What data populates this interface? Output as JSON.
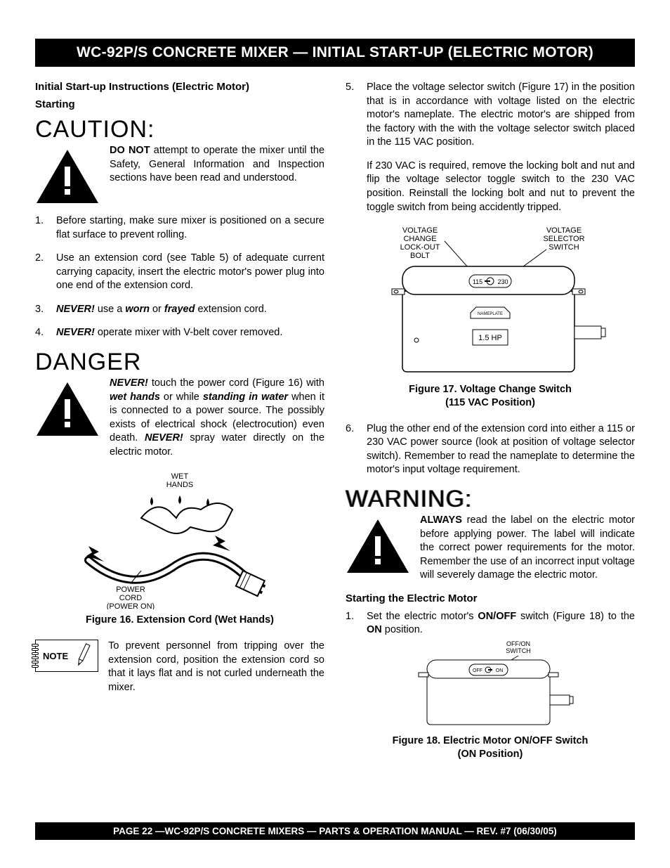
{
  "colors": {
    "bg": "#ffffff",
    "text": "#000000",
    "bar_bg": "#000000",
    "bar_text": "#ffffff"
  },
  "title_bar": "WC-92P/S CONCRETE MIXER — INITIAL START-UP (ELECTRIC MOTOR)",
  "footer_bar": "PAGE 22 —WC-92P/S CONCRETE MIXERS — PARTS & OPERATION MANUAL — REV. #7 (06/30/05)",
  "left": {
    "h1": "Initial Start-up Instructions (Electric Motor)",
    "h2": "Starting",
    "caution_label": "CAUTION:",
    "caution_text_prefix": "DO NOT",
    "caution_text": " attempt to operate the mixer until the Safety, General Information and Inspection sections have been read and understood.",
    "steps_a": [
      {
        "n": 1,
        "html": "Before starting,  make sure mixer is positioned on a secure flat surface to prevent rolling."
      },
      {
        "n": 2,
        "html": "Use an extension cord (see Table 5) of adequate current carrying capacity, insert  the electric motor's power plug  into one end of the extension cord."
      },
      {
        "n": 3,
        "html": "<span class='bi'>NEVER!</span> use a <span class='bi'>worn</span> or <span class='bi'>frayed</span> extension cord."
      },
      {
        "n": 4,
        "html": "<span class='bi'>NEVER!</span> operate mixer with V-belt cover removed."
      }
    ],
    "danger_label": "DANGER",
    "danger_html": "<span class='bi'>NEVER!</span> touch the power cord (Figure 16) with <span class='bi'>wet hands</span> or while <span class='bi'>standing in water</span> when it is connected to a power source. The possibly exists of electrical shock (electrocution) even death. <span class='bi'>NEVER!</span> spray water directly on the electric motor.",
    "fig16": {
      "label_wet": "WET\nHANDS",
      "label_cord": "POWER\nCORD\n(POWER ON)",
      "caption": "Figure  16. Extension Cord (Wet Hands)"
    },
    "note_label": "NOTE",
    "note_text": "To prevent personnel from tripping over the extension cord, position the extension cord so that it lays flat and is not curled underneath the mixer."
  },
  "right": {
    "steps_b": [
      {
        "n": 5,
        "html": "Place the voltage selector switch (Figure 17) in the position that is in accordance with voltage listed on the electric motor's nameplate. The electric motor's are shipped from the factory with the with the voltage selector switch placed in the 115 VAC position."
      },
      {
        "n": 6,
        "html": "Plug the other end of the extension cord into either a 115  or 230 VAC power source (look at position of voltage selector switch).  Remember to read the nameplate to determine the motor's input voltage requirement."
      }
    ],
    "para230": "If 230 VAC is required, remove the locking bolt and nut and flip the voltage selector toggle switch to the 230 VAC position. Reinstall the locking bolt and nut to prevent the toggle switch from being accidently tripped.",
    "fig17": {
      "label_lock": "VOLTAGE\nCHANGE\nLOCK-OUT\nBOLT",
      "label_switch": "VOLTAGE\nSELECTOR\nSWITCH",
      "sw_left": "115",
      "sw_right": "230",
      "nameplate": "NAMEPLATE",
      "hp": "1.5 HP",
      "caption": "Figure 17.  Voltage Change Switch\n(115 VAC Position)"
    },
    "warning_label": "WARNING:",
    "warning_html": "<span class='b'>ALWAYS</span> read the label on the electric motor before applying power. The label will indicate the correct power requirements for the motor. Remember the use of an incorrect input voltage will severely damage the electric motor.",
    "start_h": "Starting the Electric Motor",
    "start_step_html": "Set the electric motor's <span class='b'>ON/OFF</span> switch  (Figure 18) to the <span class='b'>ON</span> position.",
    "fig18": {
      "label_switch": "OFF/ON\nSWITCH",
      "sw_left": "OFF",
      "sw_right": "ON",
      "caption": "Figure 18.  Electric Motor ON/OFF Switch\n(ON Position)"
    }
  }
}
